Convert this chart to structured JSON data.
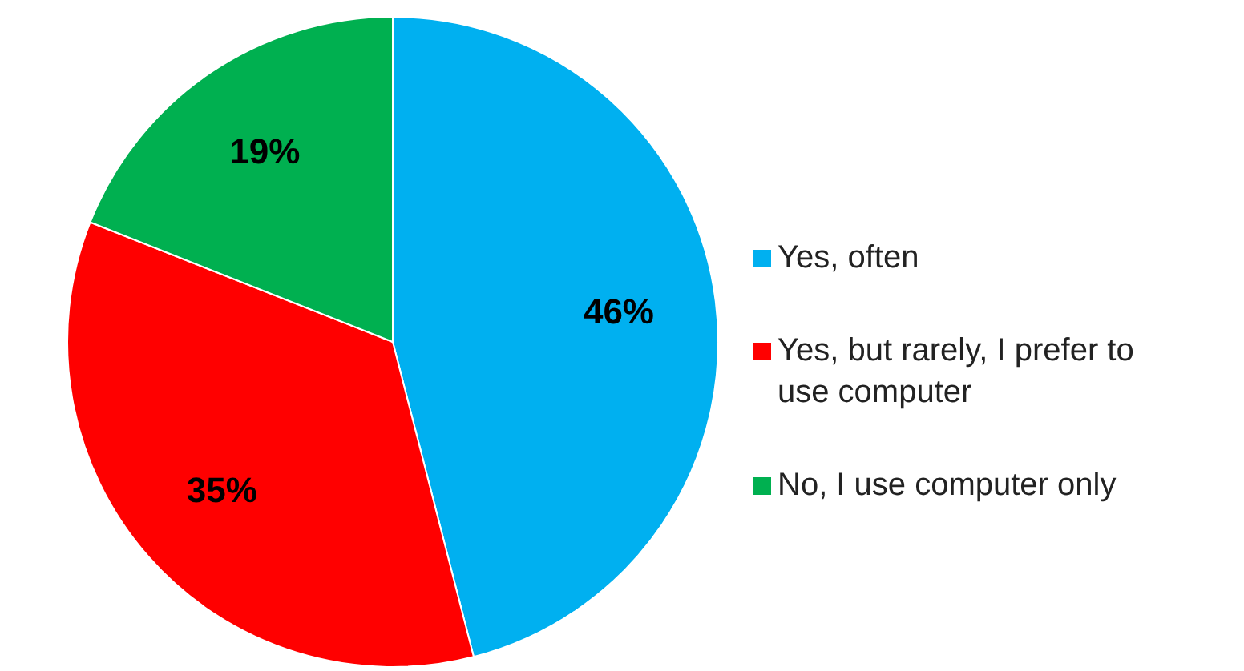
{
  "chart_data": {
    "type": "pie",
    "categories": [
      "Yes, often",
      "Yes, but rarely, I prefer to use computer",
      "No, I use computer only"
    ],
    "values": [
      46,
      35,
      19
    ],
    "colors": [
      "#00b0f0",
      "#ff0000",
      "#00b050"
    ],
    "value_labels": [
      "46%",
      "35%",
      "19%"
    ],
    "legend": "right"
  }
}
